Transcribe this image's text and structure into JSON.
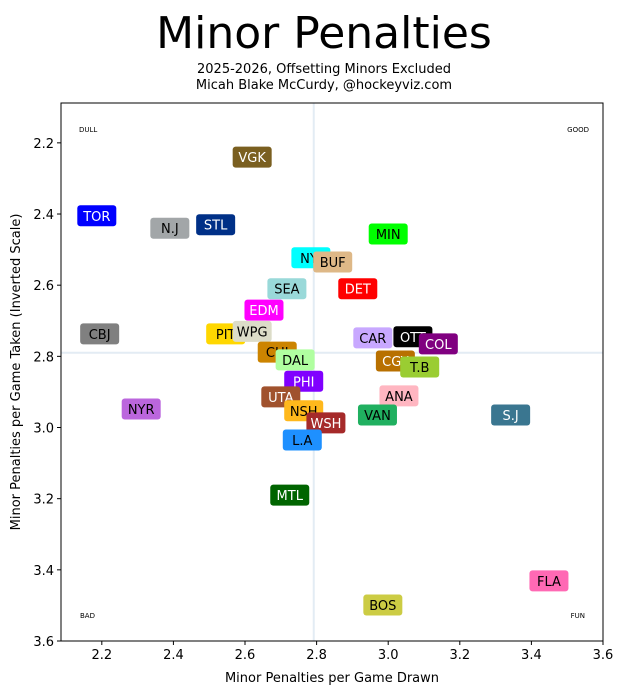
{
  "chart_data": {
    "type": "scatter",
    "title": "Minor Penalties",
    "subtitle_line1": "2025-2026, Offsetting Minors Excluded",
    "subtitle_line2": "Micah Blake McCurdy, @hockeyviz.com",
    "xlabel": "Minor Penalties per Game Drawn",
    "ylabel": "Minor Penalties per Game Taken (Inverted Scale)",
    "xlim": [
      2.086,
      3.6
    ],
    "ylim": [
      2.088,
      3.6
    ],
    "y_inverted": true,
    "xticks": [
      2.2,
      2.4,
      2.6,
      2.8,
      3.0,
      3.2,
      3.4,
      3.6
    ],
    "xtick_labels": [
      "2.2",
      "2.4",
      "2.6",
      "2.8",
      "3.0",
      "3.2",
      "3.4",
      "3.6"
    ],
    "yticks": [
      2.2,
      2.4,
      2.6,
      2.8,
      3.0,
      3.2,
      3.4,
      3.6
    ],
    "ytick_labels": [
      "2.2",
      "2.4",
      "2.6",
      "2.8",
      "3.0",
      "3.2",
      "3.4",
      "3.6"
    ],
    "mean_x": 2.792,
    "mean_y": 2.79,
    "corner_labels": {
      "top_left": "DULL",
      "top_right": "GOOD",
      "bottom_left": "BAD",
      "bottom_right": "FUN"
    },
    "points": [
      {
        "team": "TOR",
        "x": 2.186,
        "y": 2.405,
        "color": "#0000ff",
        "text": "#ffffff"
      },
      {
        "team": "N.J",
        "x": 2.39,
        "y": 2.44,
        "color": "#a2a6a8",
        "text": "#000000"
      },
      {
        "team": "STL",
        "x": 2.518,
        "y": 2.43,
        "color": "#003087",
        "text": "#ffffff"
      },
      {
        "team": "VGK",
        "x": 2.62,
        "y": 2.24,
        "color": "#7a5f20",
        "text": "#ffffff"
      },
      {
        "team": "MIN",
        "x": 3.0,
        "y": 2.456,
        "color": "#00ff00",
        "text": "#000000"
      },
      {
        "team": "NYI",
        "x": 2.784,
        "y": 2.523,
        "color": "#00ffff",
        "text": "#000000"
      },
      {
        "team": "BUF",
        "x": 2.845,
        "y": 2.535,
        "color": "#deb887",
        "text": "#000000"
      },
      {
        "team": "SEA",
        "x": 2.717,
        "y": 2.61,
        "color": "#99d9d9",
        "text": "#000000"
      },
      {
        "team": "DET",
        "x": 2.915,
        "y": 2.61,
        "color": "#ff0000",
        "text": "#ffffff"
      },
      {
        "team": "EDM",
        "x": 2.653,
        "y": 2.67,
        "color": "#ff00ff",
        "text": "#ffffff"
      },
      {
        "team": "PIT",
        "x": 2.546,
        "y": 2.737,
        "color": "#ffd700",
        "text": "#000000"
      },
      {
        "team": "WPG",
        "x": 2.62,
        "y": 2.73,
        "color": "#dcdcc8",
        "text": "#000000"
      },
      {
        "team": "CBJ",
        "x": 2.194,
        "y": 2.737,
        "color": "#808080",
        "text": "#000000"
      },
      {
        "team": "CHI",
        "x": 2.69,
        "y": 2.788,
        "color": "#cc8400",
        "text": "#000000"
      },
      {
        "team": "DAL",
        "x": 2.74,
        "y": 2.81,
        "color": "#b0ffa0",
        "text": "#000000"
      },
      {
        "team": "PHI",
        "x": 2.764,
        "y": 2.87,
        "color": "#8000ff",
        "text": "#ffffff"
      },
      {
        "team": "UTA",
        "x": 2.7,
        "y": 2.914,
        "color": "#a0522d",
        "text": "#ffffff"
      },
      {
        "team": "NSH",
        "x": 2.764,
        "y": 2.953,
        "color": "#ffb81c",
        "text": "#000000"
      },
      {
        "team": "WSH",
        "x": 2.826,
        "y": 2.987,
        "color": "#a52a2a",
        "text": "#ffffff"
      },
      {
        "team": "L.A",
        "x": 2.76,
        "y": 3.035,
        "color": "#1e90ff",
        "text": "#000000"
      },
      {
        "team": "NYR",
        "x": 2.31,
        "y": 2.948,
        "color": "#bb66dd",
        "text": "#000000"
      },
      {
        "team": "CAR",
        "x": 2.957,
        "y": 2.748,
        "color": "#c8a8ff",
        "text": "#000000"
      },
      {
        "team": "OTT",
        "x": 3.069,
        "y": 2.745,
        "color": "#000000",
        "text": "#ffffff"
      },
      {
        "team": "COL",
        "x": 3.14,
        "y": 2.765,
        "color": "#800080",
        "text": "#ffffff"
      },
      {
        "team": "CGY",
        "x": 3.02,
        "y": 2.813,
        "color": "#b87000",
        "text": "#ffffff"
      },
      {
        "team": "T.B",
        "x": 3.088,
        "y": 2.83,
        "color": "#9acd32",
        "text": "#000000"
      },
      {
        "team": "ANA",
        "x": 3.03,
        "y": 2.911,
        "color": "#ffb6c1",
        "text": "#000000"
      },
      {
        "team": "VAN",
        "x": 2.97,
        "y": 2.965,
        "color": "#20b060",
        "text": "#000000"
      },
      {
        "team": "S.J",
        "x": 3.342,
        "y": 2.965,
        "color": "#3a7690",
        "text": "#ffffff"
      },
      {
        "team": "MTL",
        "x": 2.725,
        "y": 3.19,
        "color": "#006400",
        "text": "#ffffff"
      },
      {
        "team": "FLA",
        "x": 3.449,
        "y": 3.431,
        "color": "#ff69b4",
        "text": "#000000"
      },
      {
        "team": "BOS",
        "x": 2.985,
        "y": 3.499,
        "color": "#cccc44",
        "text": "#000000"
      }
    ]
  }
}
